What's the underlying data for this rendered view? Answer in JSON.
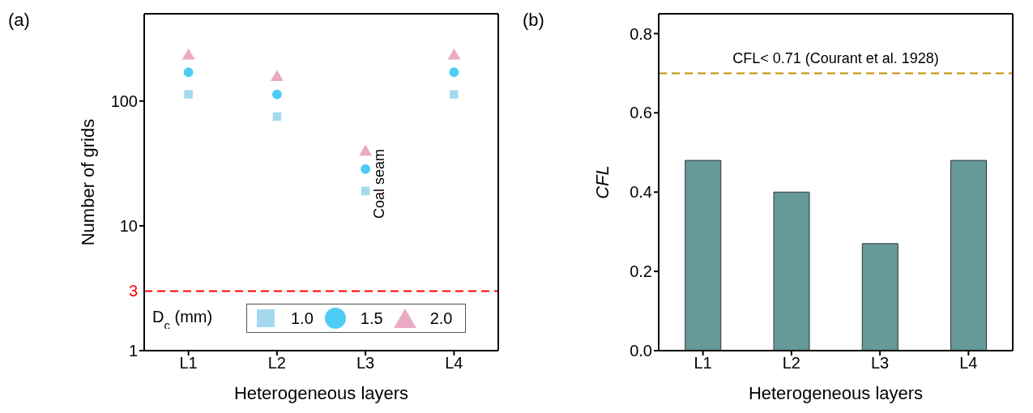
{
  "chart_data": [
    {
      "type": "scatter",
      "title": "(a)",
      "xlabel": "Heterogeneous layers",
      "ylabel": "Number of grids",
      "categories": [
        "L1",
        "L2",
        "L3",
        "L4"
      ],
      "log": "y",
      "ylim": [
        1,
        500
      ],
      "yticks": [
        1,
        10,
        100
      ],
      "legend": "bottom",
      "legend_title": "D$_{c}$ (mm)",
      "series": [
        {
          "name": "1.0",
          "color": "#a4d9f0",
          "marker": "square",
          "values": [
            113,
            75,
            19,
            113
          ]
        },
        {
          "name": "1.5",
          "color": "#4dcdf5",
          "marker": "circle",
          "values": [
            170,
            113,
            28.5,
            170
          ]
        },
        {
          "name": "2.0",
          "color": "#ebaac4",
          "marker": "triangle",
          "values": [
            230,
            155,
            39,
            230
          ]
        }
      ],
      "ref_lines": [
        {
          "axis": "y",
          "value": 3,
          "label": "3",
          "color": "#ff0000",
          "line_style": "dashed"
        }
      ],
      "annotations": [
        "Coal seam"
      ]
    },
    {
      "type": "bar",
      "title": "(b)",
      "xlabel": "Heterogeneous layers",
      "ylabel": "CFL",
      "categories": [
        "L1",
        "L2",
        "L3",
        "L4"
      ],
      "values": [
        0.48,
        0.4,
        0.27,
        0.48
      ],
      "color": "#669999",
      "ylim": [
        0,
        0.85
      ],
      "yticks": [
        {
          "value": 0,
          "label": "0.0"
        },
        0.2,
        0.4,
        0.6,
        0.8
      ],
      "ref_lines": [
        {
          "axis": "y",
          "value": 0.7,
          "label": "CFL< 0.71 (Courant et al. 1928)",
          "color": "#c09000",
          "line_style": "dashed"
        }
      ]
    }
  ]
}
